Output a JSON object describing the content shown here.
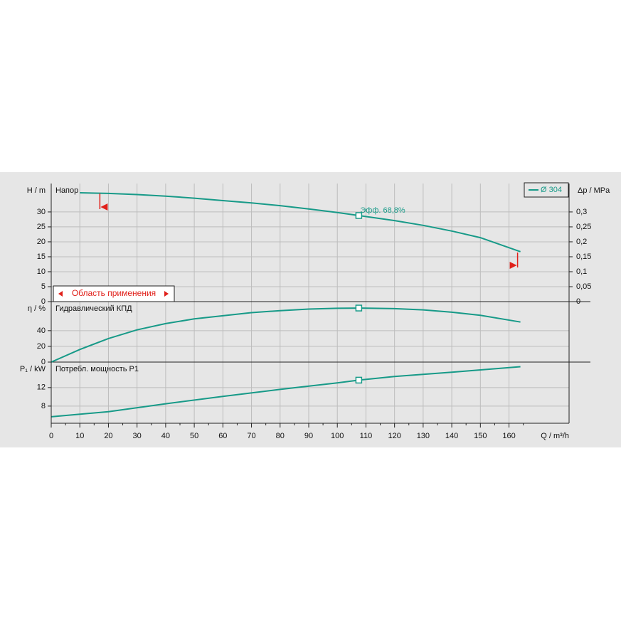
{
  "chart_data": [
    {
      "type": "line",
      "title": "Напор",
      "y_label": "H / m",
      "y2_label": "Δp / MPa",
      "x": [
        10,
        20,
        30,
        40,
        50,
        60,
        70,
        80,
        90,
        100,
        107.5,
        120,
        130,
        140,
        150,
        164
      ],
      "series": [
        {
          "name": "Ø 304",
          "color": "#179a88",
          "values": [
            36.4,
            36.2,
            35.8,
            35.3,
            34.6,
            33.8,
            33.0,
            32.1,
            31.0,
            29.8,
            28.8,
            27.1,
            25.5,
            23.6,
            21.4,
            16.7
          ]
        }
      ],
      "ylim": [
        0,
        39.5
      ],
      "yticks": [
        0,
        5,
        10,
        15,
        20,
        25,
        30
      ],
      "y2lim": [
        0,
        0.395
      ],
      "y2ticks": [
        0,
        {
          "value": 0.05,
          "label": "0,05"
        },
        {
          "value": 0.1,
          "label": "0,1"
        },
        {
          "value": 0.15,
          "label": "0,15"
        },
        {
          "value": 0.2,
          "label": "0,2"
        },
        {
          "value": 0.25,
          "label": "0,25"
        },
        {
          "value": 0.3,
          "label": "0,3"
        }
      ],
      "operating_point": {
        "x": 107.5,
        "label": "Эфф.  68,8%"
      },
      "range": {
        "label": "Область применения",
        "x": [
          17,
          163
        ]
      }
    },
    {
      "type": "line",
      "title": "Гидравлический КПД",
      "y_label": "η / %",
      "x": [
        0,
        10,
        20,
        30,
        40,
        50,
        60,
        70,
        80,
        90,
        100,
        107.5,
        120,
        130,
        140,
        150,
        164
      ],
      "series": [
        {
          "name": "η",
          "color": "#179a88",
          "values": [
            0,
            16,
            30,
            41,
            49,
            55,
            59,
            63,
            65.5,
            67.5,
            68.5,
            68.8,
            68,
            66.5,
            63.5,
            59.5,
            51
          ]
        }
      ],
      "ylim": [
        0,
        77
      ],
      "yticks": [
        0,
        20,
        40
      ]
    },
    {
      "type": "line",
      "title": "Потребл. мощность P1",
      "y_label": "P₁ / kW",
      "x_label": "Q / m³/h",
      "x": [
        0,
        20,
        40,
        60,
        80,
        100,
        107.5,
        120,
        140,
        164
      ],
      "series": [
        {
          "name": "P1",
          "color": "#179a88",
          "values": [
            5.7,
            6.8,
            8.5,
            10.1,
            11.6,
            13.0,
            13.6,
            14.4,
            15.3,
            16.5
          ]
        }
      ],
      "ylim": [
        4.3,
        17.5
      ],
      "yticks": [
        8,
        12
      ],
      "xlim": [
        0,
        181
      ],
      "xticks": [
        0,
        10,
        20,
        30,
        40,
        50,
        60,
        70,
        80,
        90,
        100,
        110,
        120,
        130,
        140,
        150,
        160
      ]
    }
  ]
}
